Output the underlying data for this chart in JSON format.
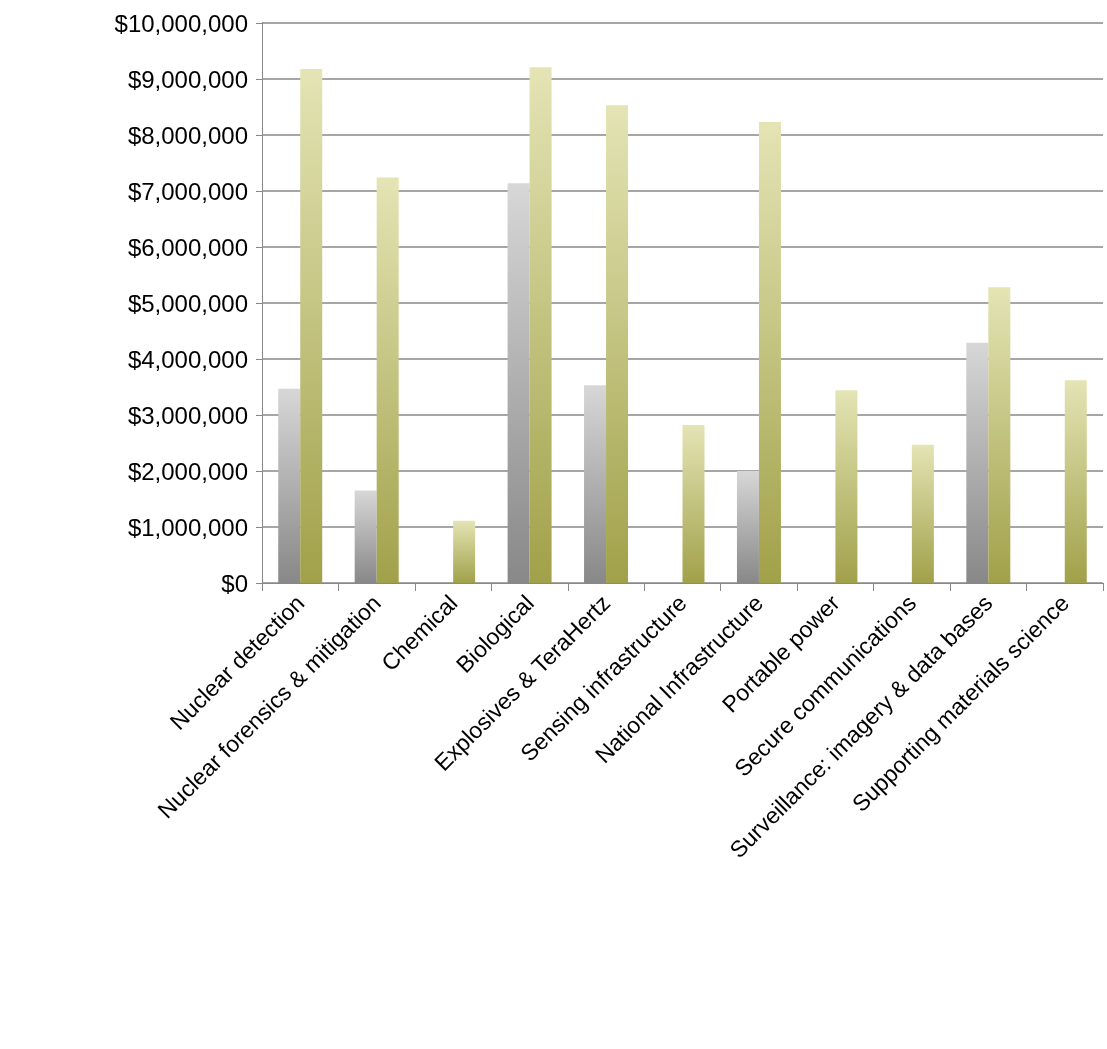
{
  "chart_data": {
    "type": "bar",
    "categories": [
      "Nuclear detection",
      "Nuclear forensics & mitigation",
      "Chemical",
      "Biological",
      "Explosives & TeraHertz",
      "Sensing infrastructure",
      "National Infrastructure",
      "Portable power",
      "Secure communications",
      "Surveillance: imagery & data bases",
      "Supporting materials science"
    ],
    "series": [
      {
        "color": "#a6a6a6",
        "values": [
          3470000,
          1650000,
          null,
          7140000,
          3530000,
          null,
          2000000,
          null,
          null,
          4290000,
          null
        ]
      },
      {
        "color": "#c4c45a",
        "values": [
          9180000,
          7240000,
          1110000,
          9210000,
          8530000,
          2820000,
          8230000,
          3440000,
          2470000,
          5280000,
          3620000
        ]
      }
    ],
    "ylim": [
      0,
      10000000
    ],
    "yticks": [
      {
        "value": 0,
        "label": "$0"
      },
      {
        "value": 1000000,
        "label": "$1,000,000"
      },
      {
        "value": 2000000,
        "label": "$2,000,000"
      },
      {
        "value": 3000000,
        "label": "$3,000,000"
      },
      {
        "value": 4000000,
        "label": "$4,000,000"
      },
      {
        "value": 5000000,
        "label": "$5,000,000"
      },
      {
        "value": 6000000,
        "label": "$6,000,000"
      },
      {
        "value": 7000000,
        "label": "$7,000,000"
      },
      {
        "value": 8000000,
        "label": "$8,000,000"
      },
      {
        "value": 9000000,
        "label": "$9,000,000"
      },
      {
        "value": 10000000,
        "label": "$10,000,000"
      }
    ],
    "grid": "y",
    "legend": false
  }
}
